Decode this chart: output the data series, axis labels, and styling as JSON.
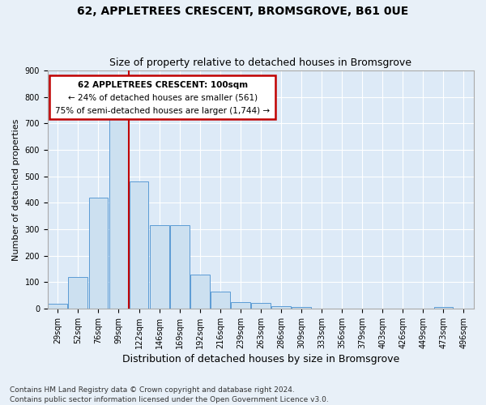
{
  "title1": "62, APPLETREES CRESCENT, BROMSGROVE, B61 0UE",
  "title2": "Size of property relative to detached houses in Bromsgrove",
  "xlabel": "Distribution of detached houses by size in Bromsgrove",
  "ylabel": "Number of detached properties",
  "footer": "Contains HM Land Registry data © Crown copyright and database right 2024.\nContains public sector information licensed under the Open Government Licence v3.0.",
  "annotation_line1": "62 APPLETREES CRESCENT: 100sqm",
  "annotation_line2": "← 24% of detached houses are smaller (561)",
  "annotation_line3": "75% of semi-detached houses are larger (1,744) →",
  "bar_labels": [
    "29sqm",
    "52sqm",
    "76sqm",
    "99sqm",
    "122sqm",
    "146sqm",
    "169sqm",
    "192sqm",
    "216sqm",
    "239sqm",
    "263sqm",
    "286sqm",
    "309sqm",
    "333sqm",
    "356sqm",
    "379sqm",
    "403sqm",
    "426sqm",
    "449sqm",
    "473sqm",
    "496sqm"
  ],
  "bar_values": [
    18,
    120,
    418,
    735,
    480,
    315,
    315,
    130,
    65,
    25,
    20,
    10,
    5,
    0,
    0,
    0,
    0,
    0,
    0,
    5,
    0
  ],
  "bar_color": "#cce0f0",
  "bar_edge_color": "#5b9bd5",
  "vline_color": "#c00000",
  "vline_x": 3.5,
  "ylim": [
    0,
    900
  ],
  "yticks": [
    0,
    100,
    200,
    300,
    400,
    500,
    600,
    700,
    800,
    900
  ],
  "annotation_box_color": "#c00000",
  "fig_bg_color": "#e8f0f8",
  "ax_bg_color": "#ddeaf7",
  "grid_color": "#ffffff",
  "title1_fontsize": 10,
  "title2_fontsize": 9,
  "ylabel_fontsize": 8,
  "xlabel_fontsize": 9,
  "tick_fontsize": 7,
  "footer_fontsize": 6.5
}
